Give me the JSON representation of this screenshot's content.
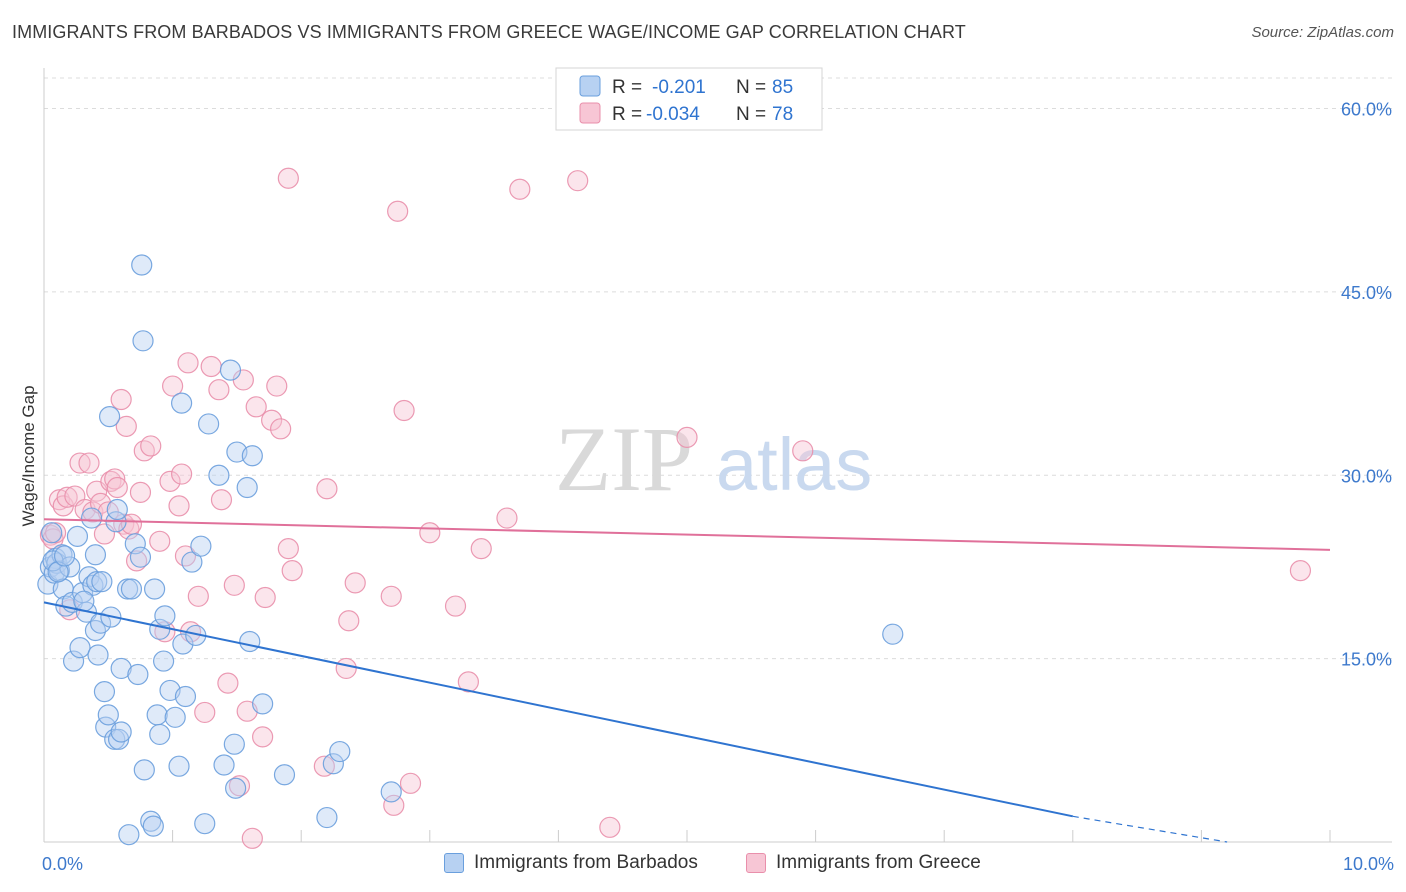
{
  "title": "IMMIGRANTS FROM BARBADOS VS IMMIGRANTS FROM GREECE WAGE/INCOME GAP CORRELATION CHART",
  "source": "Source: ZipAtlas.com",
  "watermark": {
    "zip": "ZIP",
    "atlas": "atlas"
  },
  "colors": {
    "blue": "#6a9fdd",
    "blue_fill": "#b7d1f2",
    "blue_line": "#2f74d0",
    "pink": "#e98fab",
    "pink_fill": "#f7c6d5",
    "pink_line": "#e0709a",
    "tick_label": "#3d79cc",
    "grid": "#dcdcdc"
  },
  "chart_data": {
    "type": "scatter",
    "xlabel": "",
    "ylabel": "Wage/Income Gap",
    "xlim": [
      0,
      10
    ],
    "ylim": [
      0,
      62.5
    ],
    "x_tick_labels": {
      "min": "0.0%",
      "max": "10.0%"
    },
    "y_ticks": [
      15,
      30,
      45,
      60
    ],
    "y_tick_labels": [
      "15.0%",
      "30.0%",
      "45.0%",
      "60.0%"
    ],
    "grid": true,
    "legend_position": "top-center",
    "stats": [
      {
        "r_label": "R =",
        "r_value": "-0.201",
        "n_label": "N =",
        "n_value": "85"
      },
      {
        "r_label": "R =",
        "r_value": "-0.034",
        "n_label": "N =",
        "n_value": "78"
      }
    ],
    "series": [
      {
        "name": "Immigrants from Barbados",
        "color": "#6a9fdd",
        "trend": {
          "x": [
            0,
            8.0
          ],
          "y": [
            19.6,
            2.1
          ],
          "dashed_to": [
            9.2,
            -0.9
          ]
        },
        "points": [
          [
            0.03,
            21.1
          ],
          [
            0.05,
            22.5
          ],
          [
            0.06,
            25.3
          ],
          [
            0.08,
            22.0
          ],
          [
            0.09,
            23.2
          ],
          [
            0.1,
            22.8
          ],
          [
            0.12,
            22.2
          ],
          [
            0.14,
            23.5
          ],
          [
            0.15,
            20.7
          ],
          [
            0.17,
            19.3
          ],
          [
            0.2,
            22.5
          ],
          [
            0.22,
            19.6
          ],
          [
            0.23,
            14.8
          ],
          [
            0.26,
            25.0
          ],
          [
            0.28,
            15.9
          ],
          [
            0.3,
            20.4
          ],
          [
            0.33,
            18.8
          ],
          [
            0.35,
            21.7
          ],
          [
            0.37,
            26.5
          ],
          [
            0.38,
            21.0
          ],
          [
            0.4,
            23.5
          ],
          [
            0.4,
            17.3
          ],
          [
            0.41,
            21.3
          ],
          [
            0.42,
            15.3
          ],
          [
            0.44,
            17.9
          ],
          [
            0.47,
            12.3
          ],
          [
            0.48,
            9.4
          ],
          [
            0.5,
            10.4
          ],
          [
            0.51,
            34.8
          ],
          [
            0.52,
            18.4
          ],
          [
            0.55,
            8.4
          ],
          [
            0.56,
            26.2
          ],
          [
            0.57,
            27.2
          ],
          [
            0.58,
            8.4
          ],
          [
            0.6,
            9.0
          ],
          [
            0.6,
            14.2
          ],
          [
            0.65,
            20.7
          ],
          [
            0.66,
            0.6
          ],
          [
            0.68,
            20.7
          ],
          [
            0.71,
            24.4
          ],
          [
            0.73,
            13.7
          ],
          [
            0.75,
            23.3
          ],
          [
            0.76,
            47.2
          ],
          [
            0.77,
            41.0
          ],
          [
            0.78,
            5.9
          ],
          [
            0.83,
            1.7
          ],
          [
            0.85,
            1.3
          ],
          [
            0.86,
            20.7
          ],
          [
            0.88,
            10.4
          ],
          [
            0.9,
            17.4
          ],
          [
            0.9,
            8.8
          ],
          [
            0.93,
            14.8
          ],
          [
            0.94,
            18.5
          ],
          [
            0.98,
            12.4
          ],
          [
            1.02,
            10.2
          ],
          [
            1.05,
            6.2
          ],
          [
            1.07,
            35.9
          ],
          [
            1.08,
            16.2
          ],
          [
            1.1,
            11.9
          ],
          [
            1.15,
            22.9
          ],
          [
            1.18,
            16.9
          ],
          [
            1.22,
            24.2
          ],
          [
            1.25,
            1.5
          ],
          [
            1.28,
            34.2
          ],
          [
            1.36,
            30.0
          ],
          [
            1.4,
            6.3
          ],
          [
            1.45,
            38.6
          ],
          [
            1.48,
            8.0
          ],
          [
            1.49,
            4.4
          ],
          [
            1.5,
            31.9
          ],
          [
            1.58,
            29.0
          ],
          [
            1.6,
            16.4
          ],
          [
            1.62,
            31.6
          ],
          [
            1.7,
            11.3
          ],
          [
            1.87,
            5.5
          ],
          [
            2.2,
            2.0
          ],
          [
            2.25,
            6.4
          ],
          [
            2.3,
            7.4
          ],
          [
            2.7,
            4.1
          ],
          [
            6.6,
            17.0
          ],
          [
            0.07,
            23.0
          ],
          [
            0.11,
            22.1
          ],
          [
            0.31,
            19.7
          ],
          [
            0.45,
            21.3
          ],
          [
            0.16,
            23.4
          ]
        ],
        "radii": [
          14
        ]
      },
      {
        "name": "Immigrants from Greece",
        "color": "#e98fab",
        "trend": {
          "x": [
            0,
            10.0
          ],
          "y": [
            26.4,
            23.9
          ]
        },
        "points": [
          [
            0.05,
            25.1
          ],
          [
            0.07,
            24.8
          ],
          [
            0.09,
            25.3
          ],
          [
            0.12,
            28.0
          ],
          [
            0.15,
            27.5
          ],
          [
            0.18,
            28.2
          ],
          [
            0.2,
            19.0
          ],
          [
            0.24,
            28.3
          ],
          [
            0.28,
            31.0
          ],
          [
            0.32,
            27.2
          ],
          [
            0.35,
            31.0
          ],
          [
            0.38,
            27.0
          ],
          [
            0.41,
            28.7
          ],
          [
            0.44,
            27.7
          ],
          [
            0.47,
            25.2
          ],
          [
            0.5,
            27.0
          ],
          [
            0.52,
            29.5
          ],
          [
            0.55,
            29.7
          ],
          [
            0.57,
            29.0
          ],
          [
            0.6,
            36.2
          ],
          [
            0.62,
            26.0
          ],
          [
            0.64,
            34.0
          ],
          [
            0.66,
            25.6
          ],
          [
            0.68,
            26.0
          ],
          [
            0.72,
            23.0
          ],
          [
            0.75,
            28.6
          ],
          [
            0.78,
            32.0
          ],
          [
            0.83,
            32.4
          ],
          [
            0.9,
            24.6
          ],
          [
            0.94,
            17.2
          ],
          [
            0.98,
            29.5
          ],
          [
            1.0,
            37.3
          ],
          [
            1.05,
            27.5
          ],
          [
            1.07,
            30.1
          ],
          [
            1.1,
            23.4
          ],
          [
            1.12,
            39.2
          ],
          [
            1.14,
            17.2
          ],
          [
            1.2,
            20.1
          ],
          [
            1.25,
            10.6
          ],
          [
            1.3,
            38.9
          ],
          [
            1.36,
            37.0
          ],
          [
            1.38,
            28.0
          ],
          [
            1.43,
            13.0
          ],
          [
            1.48,
            21.0
          ],
          [
            1.52,
            4.6
          ],
          [
            1.55,
            37.8
          ],
          [
            1.58,
            10.7
          ],
          [
            1.62,
            0.3
          ],
          [
            1.65,
            35.6
          ],
          [
            1.7,
            8.6
          ],
          [
            1.72,
            20.0
          ],
          [
            1.77,
            34.5
          ],
          [
            1.81,
            37.3
          ],
          [
            1.84,
            33.8
          ],
          [
            1.9,
            24.0
          ],
          [
            1.93,
            22.2
          ],
          [
            1.9,
            54.3
          ],
          [
            2.18,
            6.2
          ],
          [
            2.2,
            28.9
          ],
          [
            2.35,
            14.2
          ],
          [
            2.37,
            18.1
          ],
          [
            2.42,
            21.2
          ],
          [
            2.7,
            20.1
          ],
          [
            2.72,
            3.0
          ],
          [
            2.75,
            51.6
          ],
          [
            2.8,
            35.3
          ],
          [
            2.85,
            4.8
          ],
          [
            3.0,
            25.3
          ],
          [
            3.2,
            19.3
          ],
          [
            3.3,
            13.1
          ],
          [
            3.4,
            24.0
          ],
          [
            3.6,
            26.5
          ],
          [
            3.7,
            53.4
          ],
          [
            4.15,
            54.1
          ],
          [
            4.4,
            1.2
          ],
          [
            5.0,
            33.1
          ],
          [
            5.9,
            32.0
          ],
          [
            9.77,
            22.2
          ]
        ],
        "radii": [
          14
        ]
      }
    ]
  },
  "legend_bottom": [
    {
      "label": "Immigrants from Barbados"
    },
    {
      "label": "Immigrants from Greece"
    }
  ]
}
